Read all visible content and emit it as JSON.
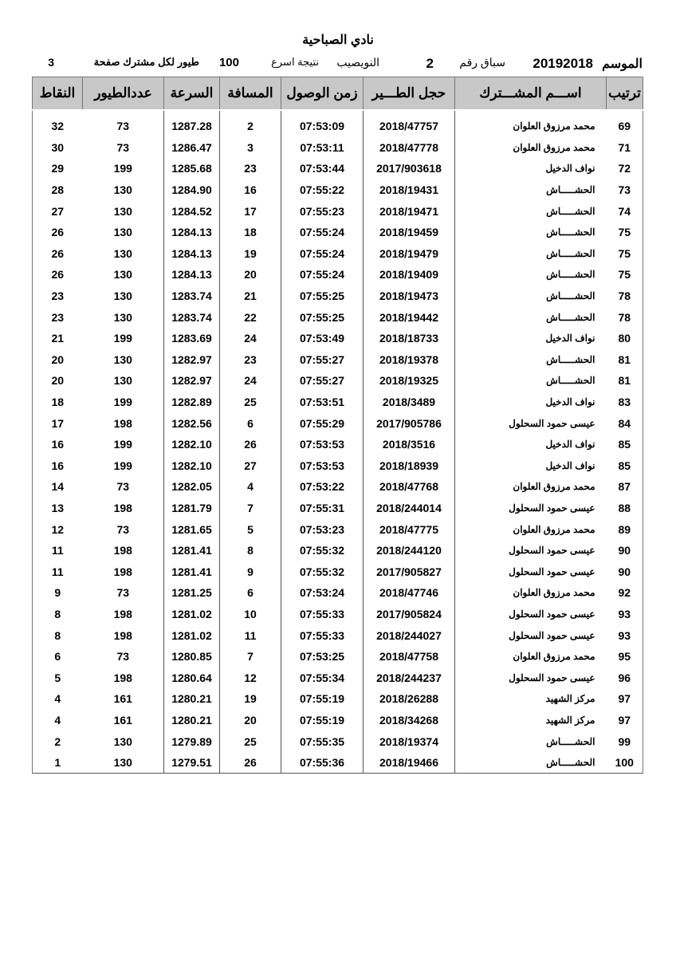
{
  "title": "نادي الصباحية",
  "info": {
    "season_label": "الموسم",
    "season": "20192018",
    "race_label": "سباق رقم",
    "race": "2",
    "race_name": "النويصيب",
    "fastest_label": "نتيجة اسرع",
    "fastest": "100",
    "per_label": "طيور لكل مشترك صفحة",
    "page": "3"
  },
  "columns": [
    "ترتيب",
    "اســـم المشـــترك",
    "حجل الطـــير",
    "زمن الوصول",
    "المسافة",
    "السرعة",
    "عددالطيور",
    "النقاط"
  ],
  "rows": [
    [
      "69",
      "محمد مرزوق العلوان",
      "2018/47757",
      "07:53:09",
      "2",
      "1287.28",
      "73",
      "32"
    ],
    [
      "71",
      "محمد مرزوق العلوان",
      "2018/47778",
      "07:53:11",
      "3",
      "1286.47",
      "73",
      "30"
    ],
    [
      "72",
      "نواف الدخيل",
      "2017/903618",
      "07:53:44",
      "23",
      "1285.68",
      "199",
      "29"
    ],
    [
      "73",
      "الحشـــــاش",
      "2018/19431",
      "07:55:22",
      "16",
      "1284.90",
      "130",
      "28"
    ],
    [
      "74",
      "الحشـــــاش",
      "2018/19471",
      "07:55:23",
      "17",
      "1284.52",
      "130",
      "27"
    ],
    [
      "75",
      "الحشـــــاش",
      "2018/19459",
      "07:55:24",
      "18",
      "1284.13",
      "130",
      "26"
    ],
    [
      "75",
      "الحشـــــاش",
      "2018/19479",
      "07:55:24",
      "19",
      "1284.13",
      "130",
      "26"
    ],
    [
      "75",
      "الحشـــــاش",
      "2018/19409",
      "07:55:24",
      "20",
      "1284.13",
      "130",
      "26"
    ],
    [
      "78",
      "الحشـــــاش",
      "2018/19473",
      "07:55:25",
      "21",
      "1283.74",
      "130",
      "23"
    ],
    [
      "78",
      "الحشـــــاش",
      "2018/19442",
      "07:55:25",
      "22",
      "1283.74",
      "130",
      "23"
    ],
    [
      "80",
      "نواف الدخيل",
      "2018/18733",
      "07:53:49",
      "24",
      "1283.69",
      "199",
      "21"
    ],
    [
      "81",
      "الحشـــــاش",
      "2018/19378",
      "07:55:27",
      "23",
      "1282.97",
      "130",
      "20"
    ],
    [
      "81",
      "الحشـــــاش",
      "2018/19325",
      "07:55:27",
      "24",
      "1282.97",
      "130",
      "20"
    ],
    [
      "83",
      "نواف الدخيل",
      "2018/3489",
      "07:53:51",
      "25",
      "1282.89",
      "199",
      "18"
    ],
    [
      "84",
      "عيسى حمود السحلول",
      "2017/905786",
      "07:55:29",
      "6",
      "1282.56",
      "198",
      "17"
    ],
    [
      "85",
      "نواف الدخيل",
      "2018/3516",
      "07:53:53",
      "26",
      "1282.10",
      "199",
      "16"
    ],
    [
      "85",
      "نواف الدخيل",
      "2018/18939",
      "07:53:53",
      "27",
      "1282.10",
      "199",
      "16"
    ],
    [
      "87",
      "محمد مرزوق العلوان",
      "2018/47768",
      "07:53:22",
      "4",
      "1282.05",
      "73",
      "14"
    ],
    [
      "88",
      "عيسى حمود السحلول",
      "2018/244014",
      "07:55:31",
      "7",
      "1281.79",
      "198",
      "13"
    ],
    [
      "89",
      "محمد مرزوق العلوان",
      "2018/47775",
      "07:53:23",
      "5",
      "1281.65",
      "73",
      "12"
    ],
    [
      "90",
      "عيسى حمود السحلول",
      "2018/244120",
      "07:55:32",
      "8",
      "1281.41",
      "198",
      "11"
    ],
    [
      "90",
      "عيسى حمود السحلول",
      "2017/905827",
      "07:55:32",
      "9",
      "1281.41",
      "198",
      "11"
    ],
    [
      "92",
      "محمد مرزوق العلوان",
      "2018/47746",
      "07:53:24",
      "6",
      "1281.25",
      "73",
      "9"
    ],
    [
      "93",
      "عيسى حمود السحلول",
      "2017/905824",
      "07:55:33",
      "10",
      "1281.02",
      "198",
      "8"
    ],
    [
      "93",
      "عيسى حمود السحلول",
      "2018/244027",
      "07:55:33",
      "11",
      "1281.02",
      "198",
      "8"
    ],
    [
      "95",
      "محمد مرزوق العلوان",
      "2018/47758",
      "07:53:25",
      "7",
      "1280.85",
      "73",
      "6"
    ],
    [
      "96",
      "عيسى حمود السحلول",
      "2018/244237",
      "07:55:34",
      "12",
      "1280.64",
      "198",
      "5"
    ],
    [
      "97",
      "مركز الشهيد",
      "2018/26288",
      "07:55:19",
      "19",
      "1280.21",
      "161",
      "4"
    ],
    [
      "97",
      "مركز الشهيد",
      "2018/34268",
      "07:55:19",
      "20",
      "1280.21",
      "161",
      "4"
    ],
    [
      "99",
      "الحشـــــاش",
      "2018/19374",
      "07:55:35",
      "25",
      "1279.89",
      "130",
      "2"
    ],
    [
      "100",
      "الحشـــــاش",
      "2018/19466",
      "07:55:36",
      "26",
      "1279.51",
      "130",
      "1"
    ]
  ]
}
